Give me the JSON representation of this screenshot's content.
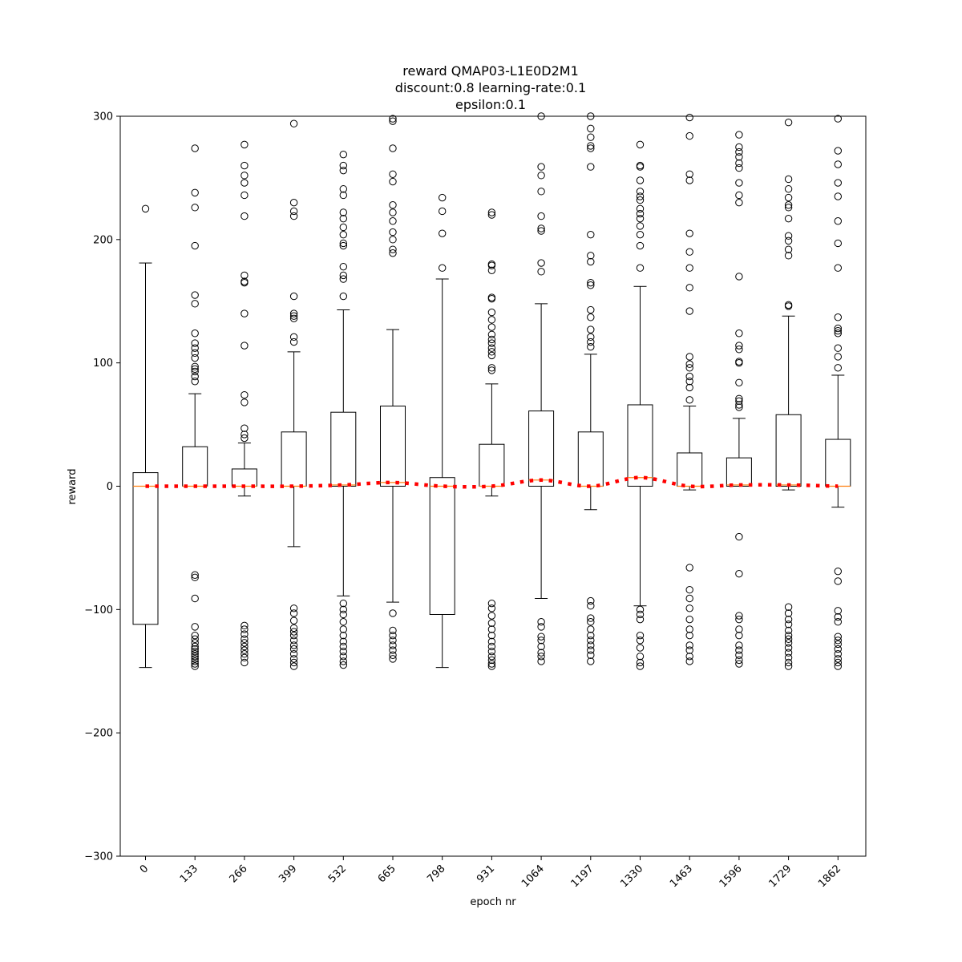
{
  "chart_data": {
    "type": "box",
    "title": [
      "reward QMAP03-L1E0D2M1",
      "discount:0.8 learning-rate:0.1",
      "epsilon:0.1"
    ],
    "xlabel": "epoch nr",
    "ylabel": "reward",
    "ylim": [
      -300,
      300
    ],
    "yticks": [
      -300,
      -200,
      -100,
      0,
      100,
      200,
      300
    ],
    "ytick_labels": [
      "−300",
      "−200",
      "−100",
      "0",
      "100",
      "200",
      "300"
    ],
    "grid": false,
    "colors": {
      "box": "#000000",
      "median": "#ff7f0e",
      "mean_line": "#ff0000"
    },
    "categories": [
      "0",
      "133",
      "266",
      "399",
      "532",
      "665",
      "798",
      "931",
      "1064",
      "1197",
      "1330",
      "1463",
      "1596",
      "1729",
      "1862"
    ],
    "boxes": [
      {
        "label": "0",
        "whislo": -147,
        "q1": -112,
        "med": 0,
        "q3": 11,
        "whishi": 181,
        "fliers": [
          225
        ]
      },
      {
        "label": "133",
        "whislo": 0,
        "q1": 0,
        "med": 0,
        "q3": 32,
        "whishi": 75,
        "fliers": [
          274,
          238,
          226,
          195,
          155,
          148,
          124,
          116,
          112,
          108,
          104,
          97,
          95,
          93,
          89,
          85,
          -72,
          -74,
          -91,
          -114,
          -121,
          -124,
          -127,
          -130,
          -132,
          -134,
          -136,
          -138,
          -140,
          -142,
          -144,
          -146
        ]
      },
      {
        "label": "266",
        "whislo": -8,
        "q1": 0,
        "med": 0,
        "q3": 14,
        "whishi": 35,
        "fliers": [
          277,
          260,
          252,
          246,
          236,
          219,
          171,
          166,
          165,
          140,
          114,
          74,
          68,
          47,
          42,
          39,
          -113,
          -116,
          -120,
          -124,
          -127,
          -130,
          -133,
          -136,
          -139,
          -143
        ]
      },
      {
        "label": "399",
        "whislo": -49,
        "q1": 0,
        "med": 0,
        "q3": 44,
        "whishi": 109,
        "fliers": [
          294,
          230,
          223,
          219,
          154,
          140,
          138,
          136,
          121,
          117,
          -99,
          -103,
          -109,
          -115,
          -118,
          -121,
          -125,
          -129,
          -132,
          -136,
          -140,
          -143,
          -146
        ]
      },
      {
        "label": "532",
        "whislo": -89,
        "q1": 0,
        "med": 1,
        "q3": 60,
        "whishi": 143,
        "fliers": [
          269,
          260,
          256,
          241,
          236,
          222,
          217,
          210,
          204,
          197,
          195,
          178,
          171,
          168,
          154,
          -95,
          -100,
          -104,
          -110,
          -116,
          -121,
          -126,
          -130,
          -134,
          -138,
          -142,
          -145
        ]
      },
      {
        "label": "665",
        "whislo": -94,
        "q1": 0,
        "med": 3,
        "q3": 65,
        "whishi": 127,
        "fliers": [
          298,
          296,
          274,
          253,
          247,
          228,
          222,
          215,
          206,
          200,
          192,
          189,
          -103,
          -117,
          -121,
          -125,
          -129,
          -133,
          -137,
          -140
        ]
      },
      {
        "label": "798",
        "whislo": -147,
        "q1": -104,
        "med": 0,
        "q3": 7,
        "whishi": 168,
        "fliers": [
          234,
          223,
          205,
          177
        ]
      },
      {
        "label": "931",
        "whislo": -8,
        "q1": 0,
        "med": 0,
        "q3": 34,
        "whishi": 83,
        "fliers": [
          222,
          220,
          180,
          179,
          175,
          153,
          152,
          141,
          135,
          129,
          123,
          119,
          116,
          112,
          109,
          106,
          96,
          94,
          -95,
          -99,
          -105,
          -111,
          -116,
          -121,
          -126,
          -130,
          -134,
          -138,
          -141,
          -144,
          -146
        ]
      },
      {
        "label": "1064",
        "whislo": -91,
        "q1": 0,
        "med": 5,
        "q3": 61,
        "whishi": 148,
        "fliers": [
          300,
          259,
          252,
          239,
          219,
          209,
          207,
          181,
          174,
          -110,
          -114,
          -122,
          -125,
          -130,
          -135,
          -138,
          -142
        ]
      },
      {
        "label": "1197",
        "whislo": -19,
        "q1": 0,
        "med": 0,
        "q3": 44,
        "whishi": 107,
        "fliers": [
          300,
          290,
          283,
          276,
          274,
          259,
          204,
          187,
          182,
          165,
          163,
          143,
          137,
          127,
          121,
          117,
          113,
          -93,
          -97,
          -107,
          -110,
          -116,
          -121,
          -125,
          -129,
          -133,
          -137,
          -142
        ]
      },
      {
        "label": "1330",
        "whislo": -97,
        "q1": 0,
        "med": 7,
        "q3": 66,
        "whishi": 162,
        "fliers": [
          277,
          260,
          259,
          248,
          239,
          235,
          232,
          225,
          221,
          217,
          211,
          204,
          195,
          177,
          -100,
          -104,
          -108,
          -121,
          -125,
          -131,
          -138,
          -143,
          -146
        ]
      },
      {
        "label": "1463",
        "whislo": -3,
        "q1": 0,
        "med": 0,
        "q3": 27,
        "whishi": 65,
        "fliers": [
          299,
          284,
          253,
          248,
          205,
          190,
          177,
          161,
          142,
          105,
          99,
          96,
          89,
          85,
          80,
          70,
          -66,
          -84,
          -91,
          -99,
          -108,
          -116,
          -121,
          -129,
          -133,
          -138,
          -142
        ]
      },
      {
        "label": "1596",
        "whislo": 0,
        "q1": 0,
        "med": 1,
        "q3": 23,
        "whishi": 55,
        "fliers": [
          285,
          275,
          271,
          267,
          262,
          258,
          246,
          236,
          230,
          170,
          124,
          114,
          111,
          101,
          100,
          84,
          71,
          69,
          66,
          64,
          -41,
          -71,
          -105,
          -108,
          -116,
          -121,
          -129,
          -133,
          -137,
          -141,
          -144
        ]
      },
      {
        "label": "1729",
        "whislo": -3,
        "q1": 0,
        "med": 1,
        "q3": 58,
        "whishi": 138,
        "fliers": [
          295,
          249,
          241,
          234,
          228,
          226,
          217,
          203,
          199,
          192,
          187,
          147,
          146,
          -98,
          -103,
          -108,
          -112,
          -117,
          -121,
          -124,
          -127,
          -131,
          -135,
          -139,
          -143,
          -146
        ]
      },
      {
        "label": "1862",
        "whislo": -17,
        "q1": 0,
        "med": 0,
        "q3": 38,
        "whishi": 90,
        "fliers": [
          298,
          272,
          261,
          246,
          235,
          215,
          197,
          177,
          137,
          128,
          126,
          124,
          112,
          105,
          96,
          -69,
          -77,
          -101,
          -106,
          -110,
          -122,
          -125,
          -128,
          -132,
          -136,
          -140,
          -143,
          -146
        ]
      }
    ],
    "mean_line": {
      "style": "dotted",
      "x": [
        "0",
        "133",
        "266",
        "399",
        "532",
        "665",
        "798",
        "931",
        "1064",
        "1197",
        "1330",
        "1463",
        "1596",
        "1729",
        "1862"
      ],
      "values": [
        0,
        0,
        0,
        0,
        1,
        3,
        0,
        0,
        5,
        0,
        7,
        0,
        1,
        1,
        0
      ]
    }
  }
}
